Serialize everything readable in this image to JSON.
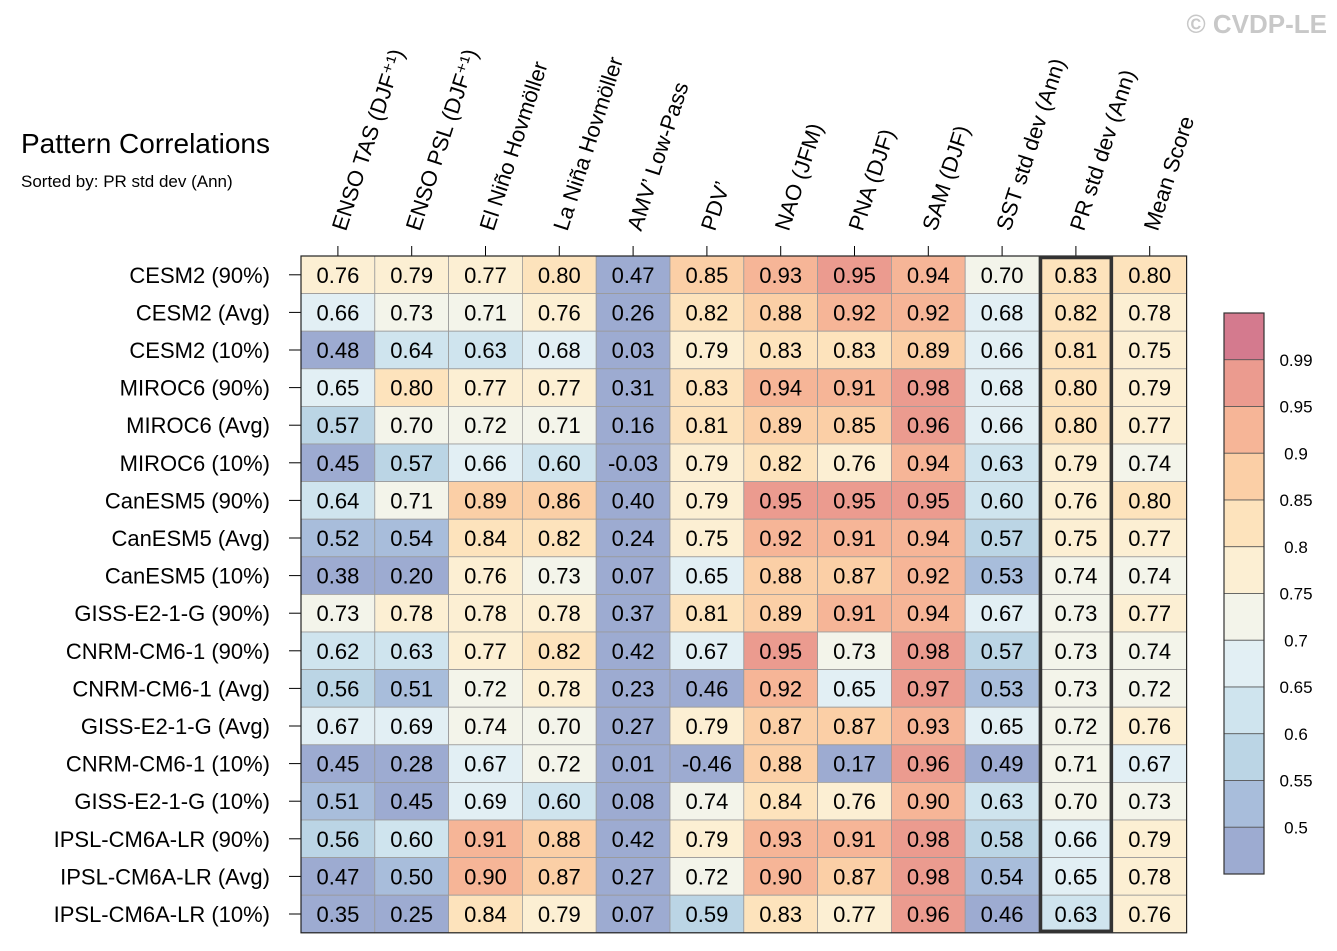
{
  "watermark": "© CVDP-LE",
  "chart_data": {
    "type": "heatmap",
    "title": "Pattern Correlations",
    "subtitle": "Sorted by: PR std dev (Ann)",
    "columns": [
      "ENSO TAS (DJF⁺¹)",
      "ENSO PSL (DJF⁺¹)",
      "El Niño Hovmöller",
      "La Niña Hovmöller",
      "AMV’ Low-Pass",
      "PDV’",
      "NAO (JFM)",
      "PNA (DJF)",
      "SAM (DJF)",
      "SST std dev (Ann)",
      "PR std dev (Ann)",
      "Mean Score"
    ],
    "highlighted_column": "PR std dev (Ann)",
    "rows": [
      {
        "label": "CESM2 (90%)",
        "values": [
          "0.76",
          "0.79",
          "0.77",
          "0.80",
          "0.47",
          "0.85",
          "0.93",
          "0.95",
          "0.94",
          "0.70",
          "0.83",
          "0.80"
        ]
      },
      {
        "label": "CESM2 (Avg)",
        "values": [
          "0.66",
          "0.73",
          "0.71",
          "0.76",
          "0.26",
          "0.82",
          "0.88",
          "0.92",
          "0.92",
          "0.68",
          "0.82",
          "0.78"
        ]
      },
      {
        "label": "CESM2 (10%)",
        "values": [
          "0.48",
          "0.64",
          "0.63",
          "0.68",
          "0.03",
          "0.79",
          "0.83",
          "0.83",
          "0.89",
          "0.66",
          "0.81",
          "0.75"
        ]
      },
      {
        "label": "MIROC6 (90%)",
        "values": [
          "0.65",
          "0.80",
          "0.77",
          "0.77",
          "0.31",
          "0.83",
          "0.94",
          "0.91",
          "0.98",
          "0.68",
          "0.80",
          "0.79"
        ]
      },
      {
        "label": "MIROC6 (Avg)",
        "values": [
          "0.57",
          "0.70",
          "0.72",
          "0.71",
          "0.16",
          "0.81",
          "0.89",
          "0.85",
          "0.96",
          "0.66",
          "0.80",
          "0.77"
        ]
      },
      {
        "label": "MIROC6 (10%)",
        "values": [
          "0.45",
          "0.57",
          "0.66",
          "0.60",
          "-0.03",
          "0.79",
          "0.82",
          "0.76",
          "0.94",
          "0.63",
          "0.79",
          "0.74"
        ]
      },
      {
        "label": "CanESM5 (90%)",
        "values": [
          "0.64",
          "0.71",
          "0.89",
          "0.86",
          "0.40",
          "0.79",
          "0.95",
          "0.95",
          "0.95",
          "0.60",
          "0.76",
          "0.80"
        ]
      },
      {
        "label": "CanESM5 (Avg)",
        "values": [
          "0.52",
          "0.54",
          "0.84",
          "0.82",
          "0.24",
          "0.75",
          "0.92",
          "0.91",
          "0.94",
          "0.57",
          "0.75",
          "0.77"
        ]
      },
      {
        "label": "CanESM5 (10%)",
        "values": [
          "0.38",
          "0.20",
          "0.76",
          "0.73",
          "0.07",
          "0.65",
          "0.88",
          "0.87",
          "0.92",
          "0.53",
          "0.74",
          "0.74"
        ]
      },
      {
        "label": "GISS-E2-1-G (90%)",
        "values": [
          "0.73",
          "0.78",
          "0.78",
          "0.78",
          "0.37",
          "0.81",
          "0.89",
          "0.91",
          "0.94",
          "0.67",
          "0.73",
          "0.77"
        ]
      },
      {
        "label": "CNRM-CM6-1 (90%)",
        "values": [
          "0.62",
          "0.63",
          "0.77",
          "0.82",
          "0.42",
          "0.67",
          "0.95",
          "0.73",
          "0.98",
          "0.57",
          "0.73",
          "0.74"
        ]
      },
      {
        "label": "CNRM-CM6-1 (Avg)",
        "values": [
          "0.56",
          "0.51",
          "0.72",
          "0.78",
          "0.23",
          "0.46",
          "0.92",
          "0.65",
          "0.97",
          "0.53",
          "0.73",
          "0.72"
        ]
      },
      {
        "label": "GISS-E2-1-G (Avg)",
        "values": [
          "0.67",
          "0.69",
          "0.74",
          "0.70",
          "0.27",
          "0.79",
          "0.87",
          "0.87",
          "0.93",
          "0.65",
          "0.72",
          "0.76"
        ]
      },
      {
        "label": "CNRM-CM6-1 (10%)",
        "values": [
          "0.45",
          "0.28",
          "0.67",
          "0.72",
          "0.01",
          "-0.46",
          "0.88",
          "0.17",
          "0.96",
          "0.49",
          "0.71",
          "0.67"
        ]
      },
      {
        "label": "GISS-E2-1-G (10%)",
        "values": [
          "0.51",
          "0.45",
          "0.69",
          "0.60",
          "0.08",
          "0.74",
          "0.84",
          "0.76",
          "0.90",
          "0.63",
          "0.70",
          "0.73"
        ]
      },
      {
        "label": "IPSL-CM6A-LR (90%)",
        "values": [
          "0.56",
          "0.60",
          "0.91",
          "0.88",
          "0.42",
          "0.79",
          "0.93",
          "0.91",
          "0.98",
          "0.58",
          "0.66",
          "0.79"
        ]
      },
      {
        "label": "IPSL-CM6A-LR (Avg)",
        "values": [
          "0.47",
          "0.50",
          "0.90",
          "0.87",
          "0.27",
          "0.72",
          "0.90",
          "0.87",
          "0.98",
          "0.54",
          "0.65",
          "0.78"
        ]
      },
      {
        "label": "IPSL-CM6A-LR (10%)",
        "values": [
          "0.35",
          "0.25",
          "0.84",
          "0.79",
          "0.07",
          "0.59",
          "0.83",
          "0.77",
          "0.96",
          "0.46",
          "0.63",
          "0.76"
        ]
      }
    ],
    "colorbar": {
      "thresholds": [
        0.5,
        0.55,
        0.6,
        0.65,
        0.7,
        0.75,
        0.8,
        0.85,
        0.9,
        0.95,
        0.99
      ],
      "labels": [
        "0.5",
        "0.55",
        "0.6",
        "0.65",
        "0.7",
        "0.75",
        "0.8",
        "0.85",
        "0.9",
        "0.95",
        "0.99"
      ],
      "colors": [
        "#9dabd1",
        "#a8bddb",
        "#bbd5e5",
        "#cfe4ee",
        "#e2eff4",
        "#f3f4ea",
        "#fcefd3",
        "#fde3bc",
        "#fbcfa6",
        "#f6b597",
        "#eb9b8f",
        "#d47a8e"
      ]
    }
  }
}
